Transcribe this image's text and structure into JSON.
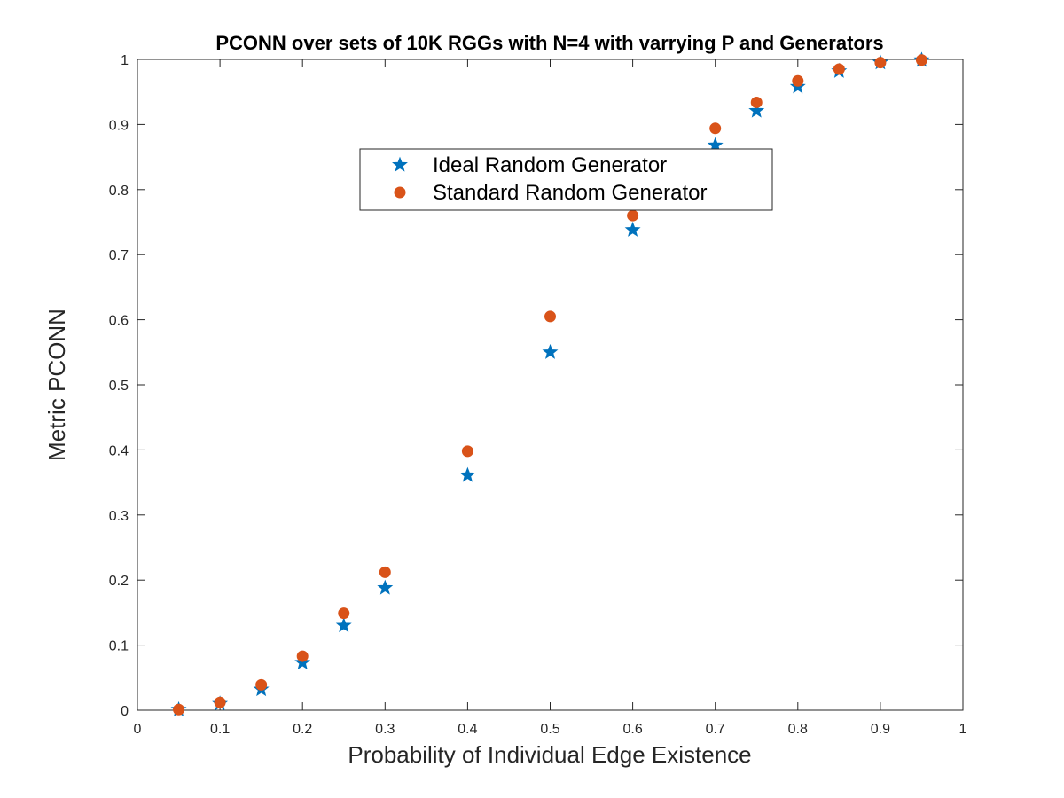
{
  "chart_data": {
    "type": "scatter",
    "title": "PCONN over sets of 10K RGGs with N=4 with varrying P and Generators",
    "xlabel": "Probability of Individual Edge Existence",
    "ylabel": "Metric PCONN",
    "xlim": [
      0,
      1
    ],
    "ylim": [
      0,
      1
    ],
    "x_ticks": [
      0,
      0.1,
      0.2,
      0.3,
      0.4,
      0.5,
      0.6,
      0.7,
      0.8,
      0.9,
      1
    ],
    "y_ticks": [
      0,
      0.1,
      0.2,
      0.3,
      0.4,
      0.5,
      0.6,
      0.7,
      0.8,
      0.9,
      1
    ],
    "x_tick_labels": [
      "0",
      "0.1",
      "0.2",
      "0.3",
      "0.4",
      "0.5",
      "0.6",
      "0.7",
      "0.8",
      "0.9",
      "1"
    ],
    "y_tick_labels": [
      "0",
      "0.1",
      "0.2",
      "0.3",
      "0.4",
      "0.5",
      "0.6",
      "0.7",
      "0.8",
      "0.9",
      "1"
    ],
    "grid": false,
    "legend_position": "top-center",
    "series": [
      {
        "name": "Ideal Random Generator",
        "marker": "star",
        "color": "#0072BD",
        "x": [
          0.05,
          0.1,
          0.15,
          0.2,
          0.25,
          0.3,
          0.4,
          0.5,
          0.6,
          0.7,
          0.75,
          0.8,
          0.85,
          0.9,
          0.95
        ],
        "y": [
          0.001,
          0.01,
          0.032,
          0.073,
          0.13,
          0.188,
          0.361,
          0.55,
          0.738,
          0.868,
          0.921,
          0.958,
          0.982,
          0.995,
          0.999
        ]
      },
      {
        "name": "Standard Random Generator",
        "marker": "circle",
        "color": "#D95319",
        "x": [
          0.05,
          0.1,
          0.15,
          0.2,
          0.25,
          0.3,
          0.4,
          0.5,
          0.6,
          0.7,
          0.75,
          0.8,
          0.85,
          0.9,
          0.95
        ],
        "y": [
          0.001,
          0.012,
          0.039,
          0.083,
          0.149,
          0.212,
          0.398,
          0.605,
          0.76,
          0.894,
          0.934,
          0.967,
          0.985,
          0.995,
          0.999
        ]
      }
    ]
  }
}
